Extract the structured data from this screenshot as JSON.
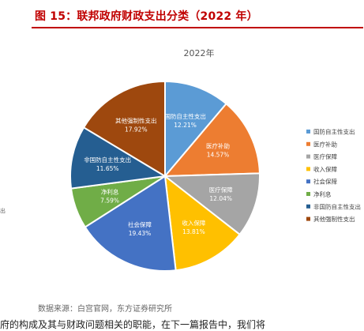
{
  "header": {
    "title": "图 15：联邦政府财政支出分类（2022 年）"
  },
  "side_fragment": "出",
  "source": "数据来源：白宫官网，东方证券研究所",
  "bottom_line": "府的构成及其与财政问题相关的职能，在下一篇报告中，我们将",
  "colors": {
    "header_red": "#C00000"
  },
  "chart_data": {
    "type": "pie",
    "title": "2022年",
    "slices": [
      {
        "name": "国防自主性支出",
        "value": 12.21,
        "label": "12.21%",
        "color": "#5B9BD5"
      },
      {
        "name": "医疗补助",
        "value": 14.57,
        "label": "14.57%",
        "color": "#ED7D31"
      },
      {
        "name": "医疗保障",
        "value": 12.04,
        "label": "12.04%",
        "color": "#A5A5A5"
      },
      {
        "name": "收入保障",
        "value": 13.81,
        "label": "13.81%",
        "color": "#FFC000"
      },
      {
        "name": "社会保障",
        "value": 19.43,
        "label": "19.43%",
        "color": "#4472C4"
      },
      {
        "name": "净利息",
        "value": 7.59,
        "label": "7.59%",
        "color": "#70AD47"
      },
      {
        "name": "非国防自主性支出",
        "value": 11.65,
        "label": "11.65%",
        "color": "#255E91"
      },
      {
        "name": "其他强制性支出",
        "value": 17.92,
        "label": "17.92%",
        "color": "#9E480E"
      }
    ],
    "legend_position": "right"
  }
}
